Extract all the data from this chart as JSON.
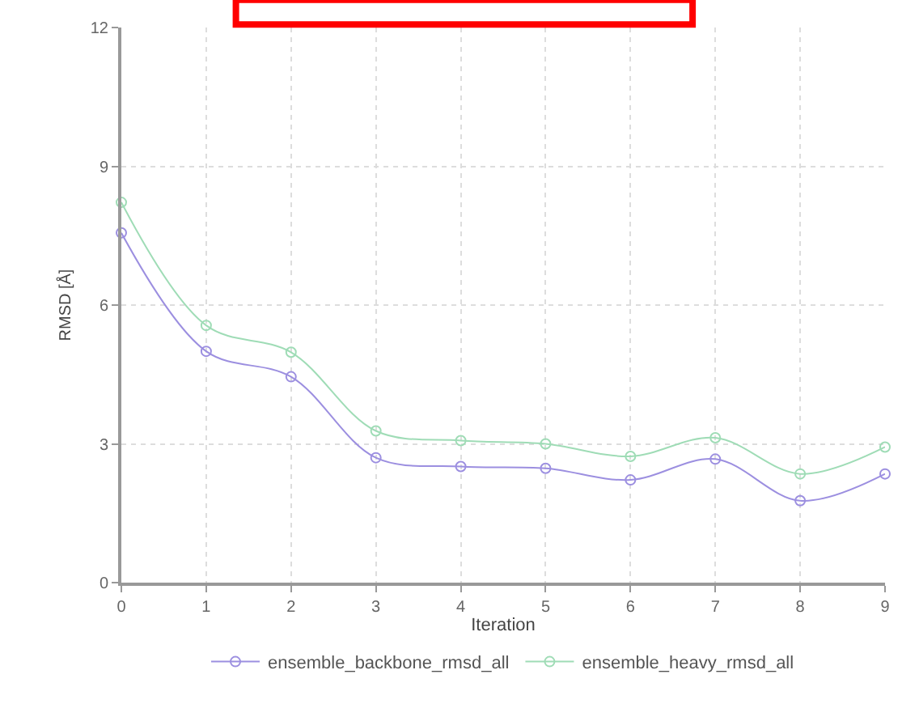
{
  "chart_data": {
    "type": "line",
    "xlabel": "Iteration",
    "ylabel": "RMSD [Å]",
    "x": [
      0,
      1,
      2,
      3,
      4,
      5,
      6,
      7,
      8,
      9
    ],
    "series": [
      {
        "name": "ensemble_backbone_rmsd_all",
        "color": "#9c8fe0",
        "values": [
          7.56,
          5.0,
          4.45,
          2.7,
          2.51,
          2.47,
          2.22,
          2.67,
          1.77,
          2.35
        ]
      },
      {
        "name": "ensemble_heavy_rmsd_all",
        "color": "#9fdcb6",
        "values": [
          8.22,
          5.56,
          4.98,
          3.28,
          3.07,
          3.0,
          2.73,
          3.13,
          2.35,
          2.93
        ]
      }
    ],
    "xlim": [
      0,
      9
    ],
    "xticks": [
      0,
      1,
      2,
      3,
      4,
      5,
      6,
      7,
      8,
      9
    ],
    "ylim": [
      0,
      12
    ],
    "yticks": [
      0,
      3,
      6,
      9,
      12
    ],
    "grid": true,
    "legend": "bottom",
    "marker": "circle",
    "line_style": "solid"
  }
}
